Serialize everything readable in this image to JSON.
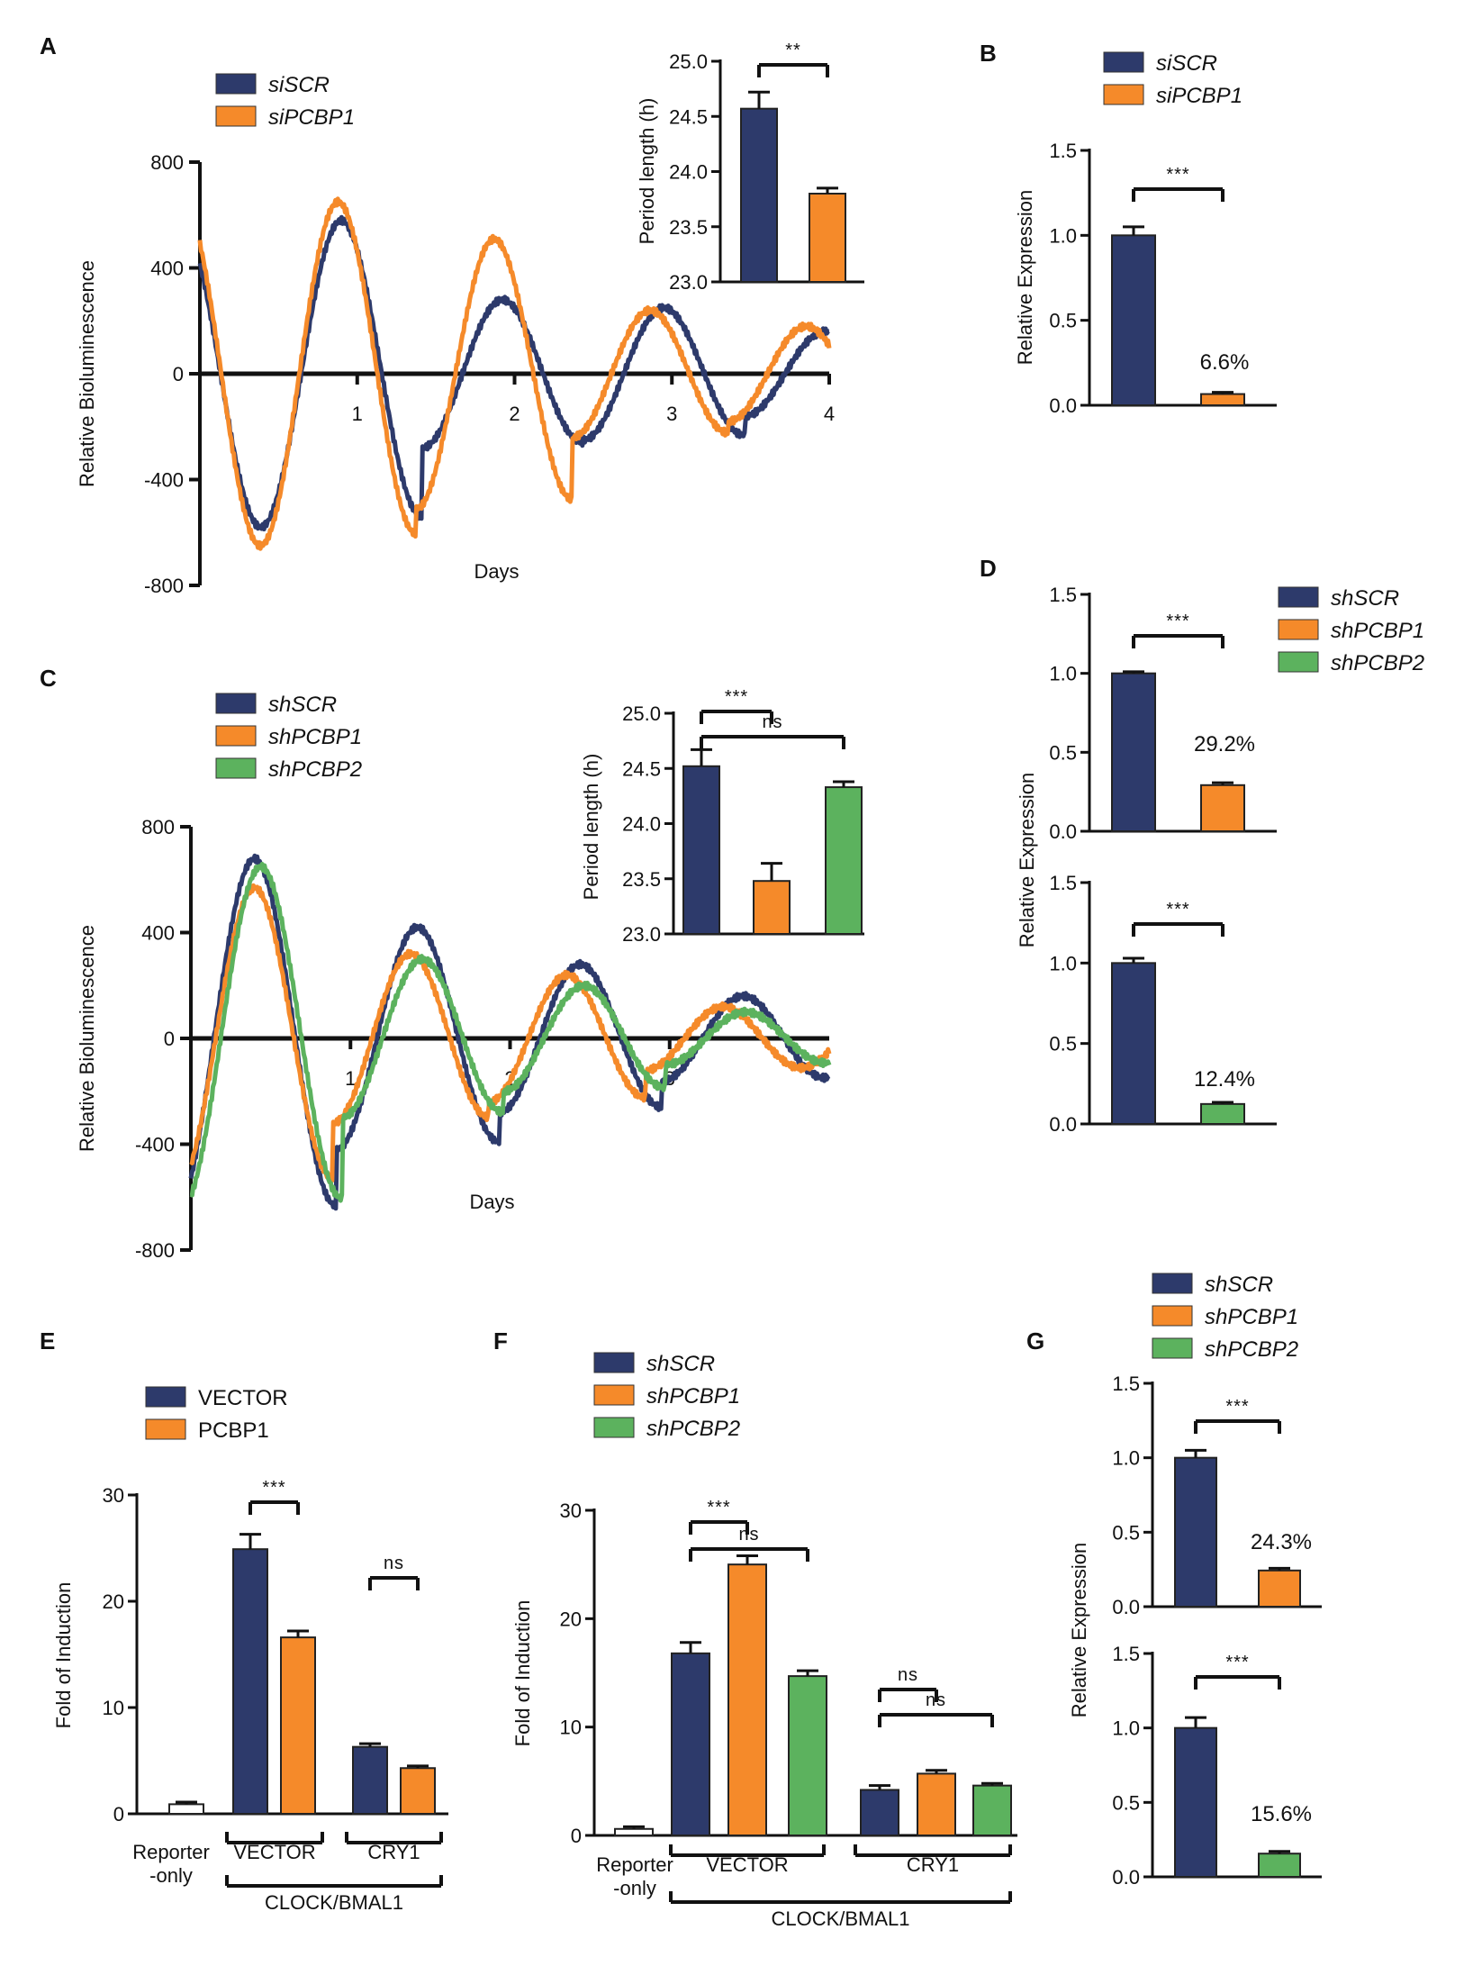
{
  "colors": {
    "navy": "#2d3a6b",
    "orange": "#f58a2a",
    "green": "#5cb25e",
    "white": "#ffffff",
    "axis": "#111111"
  },
  "panel_labels": {
    "A": "A",
    "B": "B",
    "C": "C",
    "D": "D",
    "E": "E",
    "F": "F",
    "G": "G"
  },
  "chart_data": [
    {
      "id": "A",
      "type": "line",
      "xlabel": "Days",
      "ylabel": "Relative Bioluminescence",
      "xlim": [
        0,
        4
      ],
      "ylim": [
        -800,
        800
      ],
      "yticks": [
        "800",
        "400",
        "0",
        "-400",
        "-800"
      ],
      "xticks": [
        "1",
        "2",
        "3",
        "4"
      ],
      "series": [
        {
          "name": "siSCR",
          "color": "#2d3a6b",
          "period_h": 24.6,
          "phase_day": 0.9,
          "peak_amplitudes": [
            580,
            280,
            250,
            160
          ]
        },
        {
          "name": "siPCBP1",
          "color": "#f58a2a",
          "period_h": 23.8,
          "phase_day": 0.88,
          "peak_amplitudes": [
            650,
            510,
            240,
            180
          ]
        }
      ]
    },
    {
      "id": "A-inset",
      "type": "bar",
      "ylabel": "Period length (h)",
      "ylim": [
        23.0,
        25.0
      ],
      "yticks": [
        "25.0",
        "24.5",
        "24.0",
        "23.5",
        "23.0"
      ],
      "categories": [
        "siSCR",
        "siPCBP1"
      ],
      "values": [
        24.57,
        23.8
      ],
      "errors": [
        0.15,
        0.05
      ],
      "significance": [
        {
          "pair": [
            0,
            1
          ],
          "label": "**"
        }
      ]
    },
    {
      "id": "B",
      "type": "bar",
      "ylabel": "Relative Expression",
      "ylim": [
        0,
        1.5
      ],
      "yticks": [
        "1.5",
        "1.0",
        "0.5",
        "0.0"
      ],
      "categories": [
        "siSCR",
        "siPCBP1"
      ],
      "values": [
        1.0,
        0.066
      ],
      "errors": [
        0.05,
        0.01
      ],
      "annotations": [
        {
          "index": 1,
          "text": "6.6%"
        }
      ],
      "significance": [
        {
          "pair": [
            0,
            1
          ],
          "label": "***"
        }
      ]
    },
    {
      "id": "C",
      "type": "line",
      "xlabel": "Days",
      "ylabel": "Relative Bioluminescence",
      "xlim": [
        0,
        4
      ],
      "ylim": [
        -800,
        800
      ],
      "yticks": [
        "800",
        "400",
        "0",
        "-400",
        "-800"
      ],
      "xticks": [
        "1",
        "2",
        "3"
      ],
      "series": [
        {
          "name": "shSCR",
          "color": "#2d3a6b",
          "period_h": 24.5,
          "phase_day": 0.4,
          "peak_amplitudes": [
            680,
            420,
            280,
            160
          ]
        },
        {
          "name": "shPCBP1",
          "color": "#f58a2a",
          "period_h": 23.5,
          "phase_day": 0.4,
          "peak_amplitudes": [
            570,
            320,
            240,
            120
          ]
        },
        {
          "name": "shPCBP2",
          "color": "#5cb25e",
          "period_h": 24.3,
          "phase_day": 0.44,
          "peak_amplitudes": [
            650,
            300,
            200,
            100
          ]
        }
      ]
    },
    {
      "id": "C-inset",
      "type": "bar",
      "ylabel": "Period length (h)",
      "ylim": [
        23.0,
        25.0
      ],
      "yticks": [
        "25.0",
        "24.5",
        "24.0",
        "23.5",
        "23.0"
      ],
      "categories": [
        "shSCR",
        "shPCBP1",
        "shPCBP2"
      ],
      "values": [
        24.52,
        23.48,
        24.33
      ],
      "errors": [
        0.15,
        0.16,
        0.05
      ],
      "significance": [
        {
          "pair": [
            0,
            1
          ],
          "label": "***"
        },
        {
          "pair": [
            0,
            2
          ],
          "label": "ns"
        }
      ]
    },
    {
      "id": "D-top",
      "type": "bar",
      "ylabel": "Relative Expression",
      "ylim": [
        0,
        1.5
      ],
      "yticks": [
        "1.5",
        "1.0",
        "0.5",
        "0.0"
      ],
      "categories": [
        "shSCR",
        "shPCBP1"
      ],
      "values": [
        1.0,
        0.292
      ],
      "errors": [
        0.01,
        0.015
      ],
      "annotations": [
        {
          "index": 1,
          "text": "29.2%"
        }
      ],
      "significance": [
        {
          "pair": [
            0,
            1
          ],
          "label": "***"
        }
      ]
    },
    {
      "id": "D-bottom",
      "type": "bar",
      "ylim": [
        0,
        1.5
      ],
      "yticks": [
        "1.5",
        "1.0",
        "0.5",
        "0.0"
      ],
      "categories": [
        "shSCR",
        "shPCBP2"
      ],
      "values": [
        1.0,
        0.124
      ],
      "errors": [
        0.03,
        0.01
      ],
      "annotations": [
        {
          "index": 1,
          "text": "12.4%"
        }
      ],
      "significance": [
        {
          "pair": [
            0,
            1
          ],
          "label": "***"
        }
      ]
    },
    {
      "id": "E",
      "type": "bar",
      "ylabel": "Fold of Induction",
      "ylim": [
        0,
        30
      ],
      "yticks": [
        "30",
        "20",
        "10",
        "0"
      ],
      "group_labels": [
        "Reporter\n-only",
        "VECTOR",
        "CRY1"
      ],
      "bracket_label": "CLOCK/BMAL1",
      "bars": [
        {
          "series": "Reporter-only",
          "value": 0.9,
          "error": 0.2,
          "color": "#ffffff"
        },
        {
          "series": "VECTOR",
          "value": 24.9,
          "error": 1.4,
          "color": "#2d3a6b"
        },
        {
          "series": "PCBP1",
          "value": 16.6,
          "error": 0.6,
          "color": "#f58a2a"
        },
        {
          "series": "VECTOR",
          "value": 6.3,
          "error": 0.3,
          "color": "#2d3a6b"
        },
        {
          "series": "PCBP1",
          "value": 4.3,
          "error": 0.2,
          "color": "#f58a2a"
        }
      ],
      "significance": [
        {
          "pair": [
            1,
            2
          ],
          "label": "***"
        },
        {
          "pair": [
            3,
            4
          ],
          "label": "ns"
        }
      ]
    },
    {
      "id": "F",
      "type": "bar",
      "ylabel": "Fold of Induction",
      "ylim": [
        0,
        30
      ],
      "yticks": [
        "30",
        "20",
        "10",
        "0"
      ],
      "group_labels": [
        "Reporter\n-only",
        "VECTOR",
        "CRY1"
      ],
      "bracket_label": "CLOCK/BMAL1",
      "bars": [
        {
          "series": "Reporter-only",
          "value": 0.6,
          "error": 0.2,
          "color": "#ffffff"
        },
        {
          "series": "shSCR",
          "value": 16.8,
          "error": 1.0,
          "color": "#2d3a6b"
        },
        {
          "series": "shPCBP1",
          "value": 25.0,
          "error": 0.8,
          "color": "#f58a2a"
        },
        {
          "series": "shPCBP2",
          "value": 14.7,
          "error": 0.5,
          "color": "#5cb25e"
        },
        {
          "series": "shSCR",
          "value": 4.2,
          "error": 0.4,
          "color": "#2d3a6b"
        },
        {
          "series": "shPCBP1",
          "value": 5.7,
          "error": 0.3,
          "color": "#f58a2a"
        },
        {
          "series": "shPCBP2",
          "value": 4.6,
          "error": 0.2,
          "color": "#5cb25e"
        }
      ],
      "significance": [
        {
          "pair": [
            1,
            2
          ],
          "label": "***"
        },
        {
          "pair": [
            1,
            3
          ],
          "label": "ns"
        },
        {
          "pair": [
            4,
            5
          ],
          "label": "ns"
        },
        {
          "pair": [
            4,
            6
          ],
          "label": "ns"
        }
      ]
    },
    {
      "id": "G-top",
      "type": "bar",
      "ylabel": "Relative Expression",
      "ylim": [
        0,
        1.5
      ],
      "yticks": [
        "1.5",
        "1.0",
        "0.5",
        "0.0"
      ],
      "categories": [
        "shSCR",
        "shPCBP1"
      ],
      "values": [
        1.0,
        0.243
      ],
      "errors": [
        0.05,
        0.015
      ],
      "annotations": [
        {
          "index": 1,
          "text": "24.3%"
        }
      ],
      "significance": [
        {
          "pair": [
            0,
            1
          ],
          "label": "***"
        }
      ]
    },
    {
      "id": "G-bottom",
      "type": "bar",
      "ylim": [
        0,
        1.5
      ],
      "yticks": [
        "1.5",
        "1.0",
        "0.5",
        "0.0"
      ],
      "categories": [
        "shSCR",
        "shPCBP2"
      ],
      "values": [
        1.0,
        0.156
      ],
      "errors": [
        0.07,
        0.015
      ],
      "annotations": [
        {
          "index": 1,
          "text": "15.6%"
        }
      ],
      "significance": [
        {
          "pair": [
            0,
            1
          ],
          "label": "***"
        }
      ]
    }
  ],
  "legends": {
    "A": [
      {
        "label": "siSCR",
        "color": "#2d3a6b"
      },
      {
        "label": "siPCBP1",
        "color": "#f58a2a"
      }
    ],
    "B": [
      {
        "label": "siSCR",
        "color": "#2d3a6b"
      },
      {
        "label": "siPCBP1",
        "color": "#f58a2a"
      }
    ],
    "C": [
      {
        "label": "shSCR",
        "color": "#2d3a6b"
      },
      {
        "label": "shPCBP1",
        "color": "#f58a2a"
      },
      {
        "label": "shPCBP2",
        "color": "#5cb25e"
      }
    ],
    "D": [
      {
        "label": "shSCR",
        "color": "#2d3a6b"
      },
      {
        "label": "shPCBP1",
        "color": "#f58a2a"
      },
      {
        "label": "shPCBP2",
        "color": "#5cb25e"
      }
    ],
    "E": [
      {
        "label": "VECTOR",
        "color": "#2d3a6b"
      },
      {
        "label": "PCBP1",
        "color": "#f58a2a"
      }
    ],
    "F": [
      {
        "label": "shSCR",
        "color": "#2d3a6b"
      },
      {
        "label": "shPCBP1",
        "color": "#f58a2a"
      },
      {
        "label": "shPCBP2",
        "color": "#5cb25e"
      }
    ],
    "G": [
      {
        "label": "shSCR",
        "color": "#2d3a6b"
      },
      {
        "label": "shPCBP1",
        "color": "#f58a2a"
      },
      {
        "label": "shPCBP2",
        "color": "#5cb25e"
      }
    ]
  }
}
